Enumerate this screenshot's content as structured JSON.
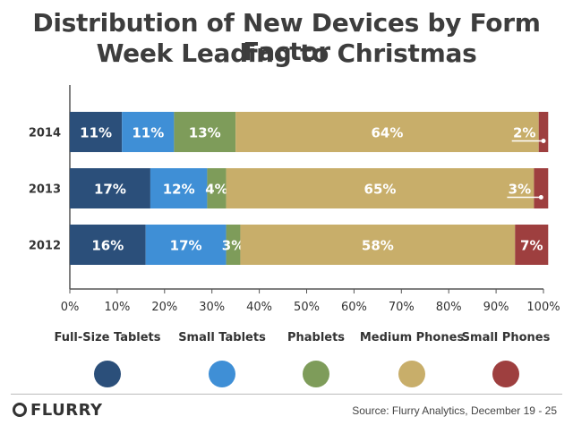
{
  "title_line1": "Distribution of New Devices by Form Factor",
  "title_line2": "Week Leading to Christmas",
  "source": "Source: Flurry Analytics, December 19 - 25",
  "logo": "FLURRY",
  "chart_data": {
    "type": "bar",
    "orientation": "horizontal",
    "stacked": true,
    "categories": [
      "2014",
      "2013",
      "2012"
    ],
    "series": [
      {
        "name": "Full-Size Tablets",
        "color": "#2b4f7a",
        "values": [
          11,
          17,
          16
        ],
        "labels": [
          "11%",
          "17%",
          "16%"
        ]
      },
      {
        "name": "Small Tablets",
        "color": "#3f8fd6",
        "values": [
          11,
          12,
          17
        ],
        "labels": [
          "11%",
          "12%",
          "17%"
        ]
      },
      {
        "name": "Phablets",
        "color": "#7e9c5a",
        "values": [
          13,
          4,
          3
        ],
        "labels": [
          "13%",
          "4%",
          "3%"
        ]
      },
      {
        "name": "Medium Phones",
        "color": "#c8ae6a",
        "values": [
          64,
          65,
          58
        ],
        "labels": [
          "64%",
          "65%",
          "58%"
        ]
      },
      {
        "name": "Small Phones",
        "color": "#9e3f3f",
        "values": [
          2,
          3,
          7
        ],
        "labels": [
          "2%",
          "3%",
          "7%"
        ]
      }
    ],
    "xlim": [
      0,
      100
    ],
    "xticks": [
      "0%",
      "10%",
      "20%",
      "30%",
      "40%",
      "50%",
      "60%",
      "70%",
      "80%",
      "90%",
      "100%"
    ],
    "legend_position": "bottom",
    "grid": false
  }
}
